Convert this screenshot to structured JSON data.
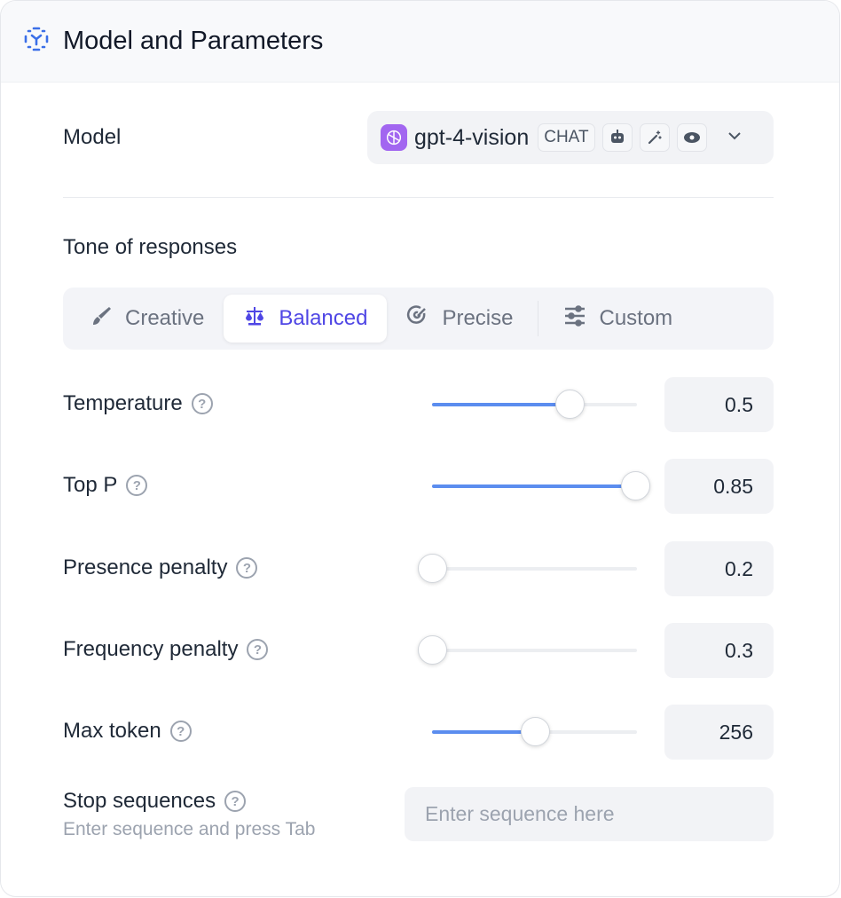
{
  "header": {
    "title": "Model and Parameters",
    "icon": "model-scan-icon"
  },
  "model": {
    "label": "Model",
    "name": "gpt-4-vision",
    "badge": "CHAT",
    "capability_icons": [
      "robot-icon",
      "magic-wand-icon",
      "eye-icon"
    ],
    "logo_color": "#a266f0"
  },
  "tone": {
    "label": "Tone of responses",
    "tabs": [
      {
        "label": "Creative",
        "icon": "brush-icon",
        "active": false
      },
      {
        "label": "Balanced",
        "icon": "scale-icon",
        "active": true
      },
      {
        "label": "Precise",
        "icon": "target-icon",
        "active": false
      },
      {
        "label": "Custom",
        "icon": "sliders-icon",
        "active": false
      }
    ]
  },
  "params": [
    {
      "label": "Temperature",
      "value": "0.5",
      "level": 0.67
    },
    {
      "label": "Top P",
      "value": "0.85",
      "level": 0.99
    },
    {
      "label": "Presence penalty",
      "value": "0.2",
      "level": 0
    },
    {
      "label": "Frequency penalty",
      "value": "0.3",
      "level": 0
    },
    {
      "label": "Max token",
      "value": "256",
      "level": 0.5
    }
  ],
  "stop": {
    "label": "Stop sequences",
    "hint": "Enter sequence and press Tab",
    "placeholder": "Enter sequence here"
  },
  "colors": {
    "accent": "#4f46e5",
    "slider": "#5b8def"
  }
}
